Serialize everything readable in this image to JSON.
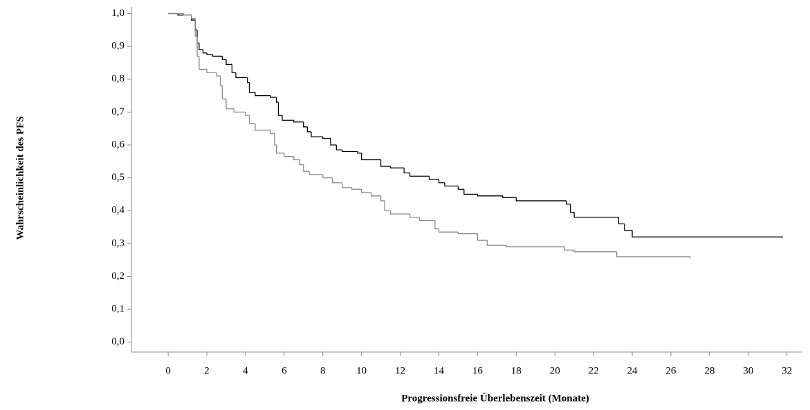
{
  "chart_data": {
    "type": "step",
    "x_label": "Progressionsfreie Überlebenszeit (Monate)",
    "y_label": "Wahrscheinlichkeit des PFS",
    "xlim": [
      -1.9,
      32.8
    ],
    "ylim": [
      -0.03,
      1.02
    ],
    "xticks": [
      0,
      2,
      4,
      6,
      8,
      10,
      12,
      14,
      16,
      18,
      20,
      22,
      24,
      26,
      28,
      30,
      32
    ],
    "yticks": [
      {
        "value": 0,
        "label": "0,0"
      },
      {
        "value": 0.1,
        "label": "0,1"
      },
      {
        "value": 0.2,
        "label": "0,2"
      },
      {
        "value": 0.3,
        "label": "0,3"
      },
      {
        "value": 0.4,
        "label": "0,4"
      },
      {
        "value": 0.5,
        "label": "0,5"
      },
      {
        "value": 0.6,
        "label": "0,6"
      },
      {
        "value": 0.7,
        "label": "0,7"
      },
      {
        "value": 0.8,
        "label": "0,8"
      },
      {
        "value": 0.9,
        "label": "0,9"
      },
      {
        "value": 1,
        "label": "1,0"
      }
    ],
    "series": [
      {
        "color": "#000000",
        "x": [
          0,
          0.5,
          1.2,
          1.4,
          1.5,
          1.6,
          1.8,
          2.0,
          2.3,
          2.8,
          3.0,
          3.3,
          3.5,
          4.1,
          4.2,
          4.5,
          5.3,
          5.6,
          5.7,
          5.9,
          6.5,
          7.0,
          7.2,
          7.4,
          8.0,
          8.4,
          8.7,
          9.0,
          9.8,
          10.0,
          11.0,
          11.5,
          12.2,
          12.5,
          13.5,
          14.0,
          14.3,
          15.0,
          15.3,
          16.0,
          17.3,
          18.0,
          20.6,
          20.8,
          21.0,
          23.3,
          23.6,
          24.0,
          31.8
        ],
        "values": [
          1.0,
          0.995,
          0.98,
          0.95,
          0.91,
          0.89,
          0.88,
          0.875,
          0.87,
          0.86,
          0.845,
          0.82,
          0.805,
          0.79,
          0.76,
          0.75,
          0.745,
          0.73,
          0.69,
          0.675,
          0.67,
          0.655,
          0.64,
          0.625,
          0.62,
          0.6,
          0.585,
          0.58,
          0.575,
          0.555,
          0.535,
          0.53,
          0.515,
          0.505,
          0.495,
          0.485,
          0.475,
          0.465,
          0.45,
          0.445,
          0.44,
          0.43,
          0.42,
          0.395,
          0.38,
          0.36,
          0.34,
          0.32,
          0.32
        ]
      },
      {
        "color": "#888888",
        "x": [
          0,
          0.8,
          1.2,
          1.4,
          1.5,
          1.6,
          2.0,
          2.5,
          2.7,
          2.8,
          3.0,
          3.4,
          4.0,
          4.2,
          4.5,
          5.3,
          5.5,
          5.6,
          6.0,
          6.5,
          6.8,
          7.0,
          7.3,
          8.0,
          8.5,
          9.0,
          9.5,
          10.0,
          10.5,
          11.0,
          11.2,
          11.5,
          12.5,
          13.0,
          13.8,
          14.0,
          15.0,
          16.0,
          16.5,
          17.5,
          20.5,
          21.0,
          23.2,
          27.0
        ],
        "values": [
          1.0,
          0.995,
          0.985,
          0.93,
          0.87,
          0.83,
          0.82,
          0.81,
          0.78,
          0.74,
          0.71,
          0.7,
          0.69,
          0.665,
          0.645,
          0.635,
          0.6,
          0.575,
          0.565,
          0.555,
          0.54,
          0.52,
          0.51,
          0.5,
          0.485,
          0.47,
          0.465,
          0.455,
          0.445,
          0.43,
          0.4,
          0.39,
          0.38,
          0.37,
          0.345,
          0.335,
          0.33,
          0.31,
          0.295,
          0.29,
          0.28,
          0.275,
          0.26,
          0.255
        ]
      }
    ]
  }
}
